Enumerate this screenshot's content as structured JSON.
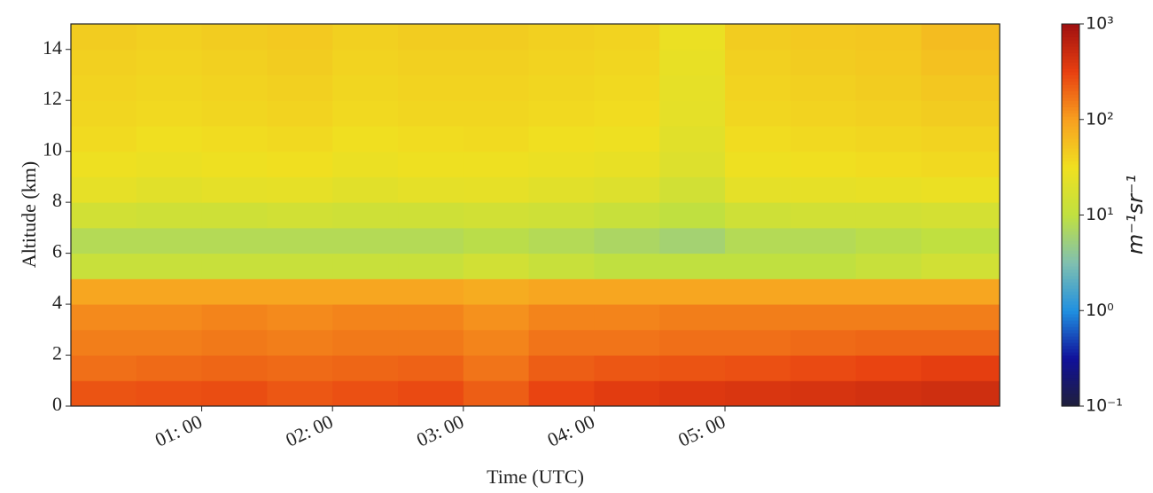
{
  "chart_data": {
    "type": "heatmap",
    "x_label": "Time (UTC)",
    "y_label": "Altitude (km)",
    "colorbar_label": "m⁻¹sr⁻¹",
    "xbins": [
      0,
      0.5,
      1,
      1.5,
      2,
      2.5,
      3,
      3.5,
      4,
      4.5,
      5,
      5.5,
      6,
      6.5,
      7.1
    ],
    "ybins": [
      0,
      1,
      2,
      3,
      4,
      5,
      6,
      7,
      8,
      9,
      10,
      11,
      12,
      13,
      14,
      15
    ],
    "z": [
      [
        250,
        260,
        270,
        240,
        260,
        280,
        220,
        300,
        350,
        380,
        400,
        420,
        450,
        480
      ],
      [
        180,
        190,
        200,
        190,
        200,
        210,
        170,
        220,
        240,
        250,
        260,
        280,
        300,
        330
      ],
      [
        150,
        150,
        160,
        150,
        160,
        160,
        140,
        170,
        170,
        180,
        180,
        190,
        200,
        200
      ],
      [
        130,
        130,
        140,
        130,
        140,
        140,
        120,
        140,
        140,
        150,
        150,
        150,
        150,
        150
      ],
      [
        90,
        90,
        90,
        90,
        90,
        90,
        80,
        90,
        90,
        90,
        90,
        90,
        90,
        90
      ],
      [
        12,
        12,
        12,
        12,
        12,
        12,
        15,
        12,
        10,
        10,
        10,
        10,
        12,
        15
      ],
      [
        8,
        8,
        8,
        8,
        8,
        8,
        9,
        8,
        7,
        6,
        8,
        8,
        9,
        10
      ],
      [
        15,
        14,
        14,
        15,
        14,
        14,
        15,
        14,
        12,
        10,
        14,
        15,
        15,
        16
      ],
      [
        25,
        22,
        24,
        25,
        22,
        24,
        25,
        22,
        20,
        15,
        24,
        25,
        26,
        28
      ],
      [
        30,
        28,
        30,
        32,
        28,
        30,
        30,
        28,
        26,
        20,
        30,
        32,
        34,
        36
      ],
      [
        35,
        32,
        34,
        36,
        32,
        34,
        35,
        32,
        30,
        22,
        34,
        36,
        38,
        40
      ],
      [
        38,
        36,
        38,
        40,
        36,
        38,
        38,
        36,
        34,
        24,
        38,
        40,
        42,
        45
      ],
      [
        40,
        38,
        40,
        42,
        38,
        40,
        40,
        38,
        36,
        25,
        40,
        42,
        45,
        50
      ],
      [
        42,
        40,
        42,
        45,
        40,
        42,
        42,
        40,
        38,
        26,
        42,
        45,
        48,
        55
      ],
      [
        45,
        42,
        45,
        48,
        42,
        45,
        45,
        42,
        40,
        28,
        45,
        48,
        50,
        60
      ]
    ],
    "xlim": [
      0,
      7.1
    ],
    "ylim": [
      0,
      15
    ],
    "xticks": [
      {
        "value": 1,
        "label": "01: 00"
      },
      {
        "value": 2,
        "label": "02: 00"
      },
      {
        "value": 3,
        "label": "03: 00"
      },
      {
        "value": 4,
        "label": "04: 00"
      },
      {
        "value": 5,
        "label": "05: 00"
      }
    ],
    "yticks": [
      0,
      2,
      4,
      6,
      8,
      10,
      12,
      14
    ],
    "clim": [
      0.1,
      1000
    ],
    "color_scale": "log",
    "cticks": [
      {
        "value": 0.1,
        "label": "10⁻¹"
      },
      {
        "value": 1,
        "label": "10⁰"
      },
      {
        "value": 10,
        "label": "10¹"
      },
      {
        "value": 100,
        "label": "10²"
      },
      {
        "value": 1000,
        "label": "10³"
      }
    ],
    "colormap": [
      "#20203a",
      "#10109a",
      "#2090e0",
      "#80c0b0",
      "#c0e040",
      "#f0e020",
      "#f8a020",
      "#e84010",
      "#a01010"
    ]
  }
}
